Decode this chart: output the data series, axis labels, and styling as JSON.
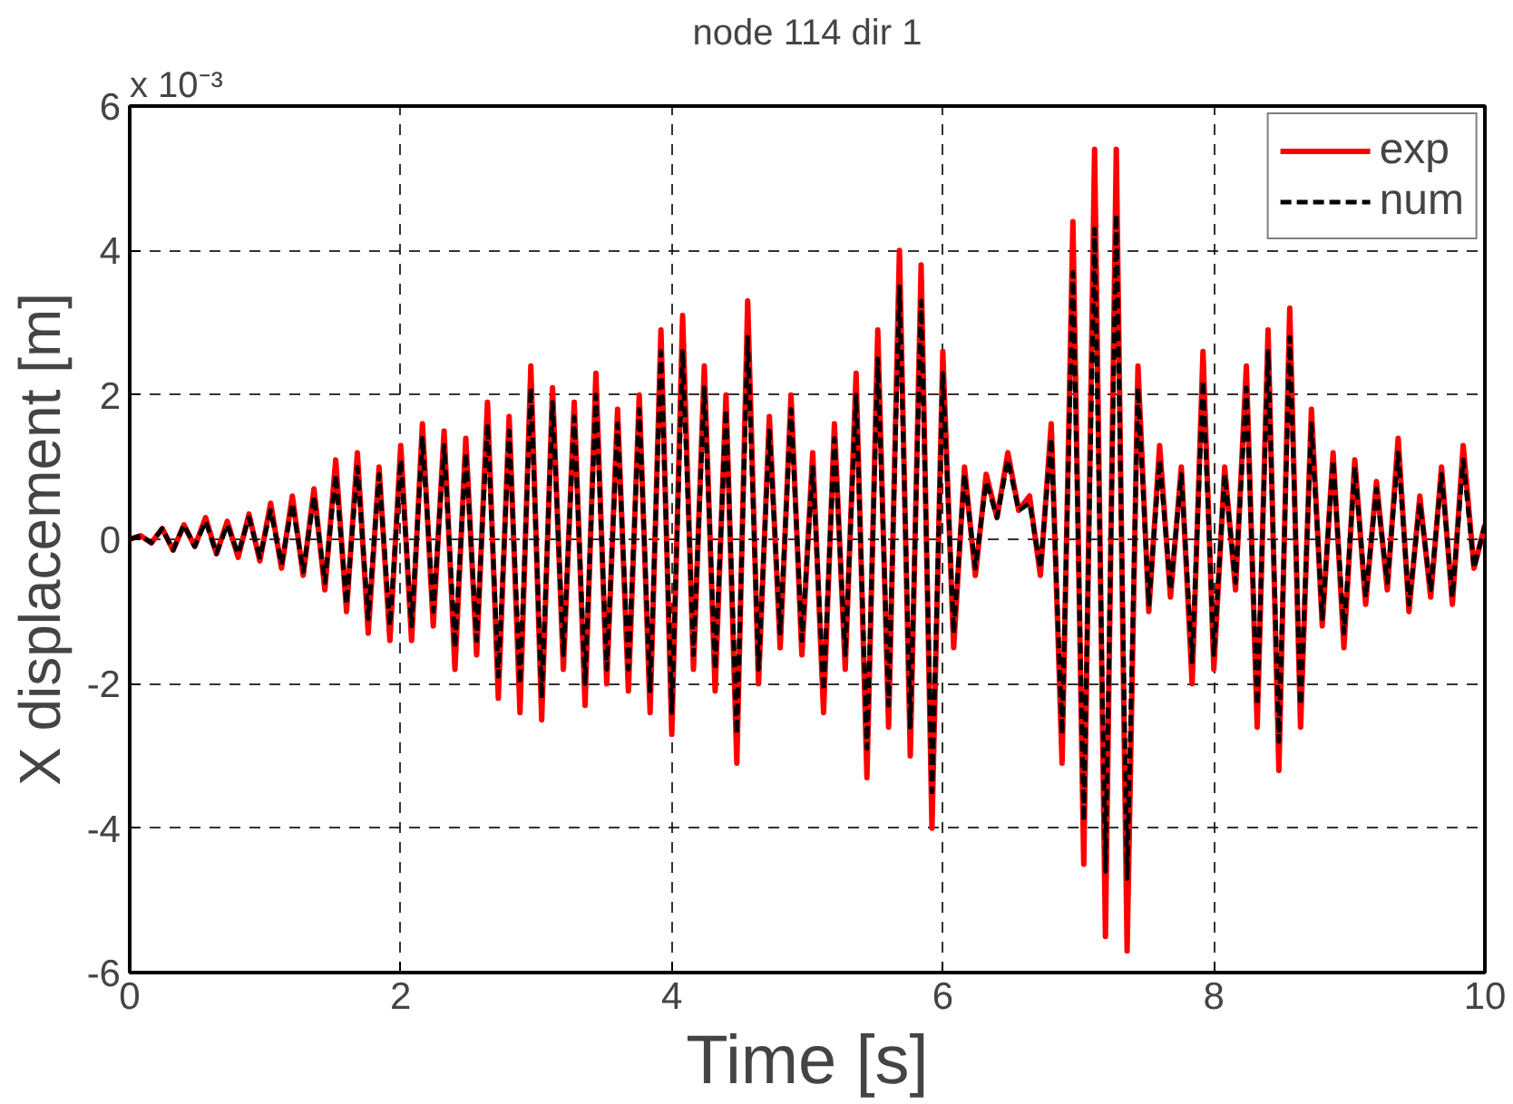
{
  "chart_data": {
    "type": "line",
    "title": "node 114 dir 1",
    "xlabel": "Time [s]",
    "ylabel": "X displacement [m]",
    "annotations": [
      "x 10⁻³"
    ],
    "xlim": [
      0,
      10
    ],
    "xticks": [
      0,
      2,
      4,
      6,
      8,
      10
    ],
    "ylim": [
      -6,
      6
    ],
    "yticks": [
      -6,
      -4,
      -2,
      0,
      2,
      4,
      6
    ],
    "grid": true,
    "legend": "top right",
    "x": [
      0,
      0.08,
      0.16,
      0.24,
      0.32,
      0.4,
      0.48,
      0.56,
      0.64,
      0.72,
      0.8,
      0.88,
      0.96,
      1.04,
      1.12,
      1.2,
      1.28,
      1.36,
      1.44,
      1.52,
      1.6,
      1.68,
      1.76,
      1.84,
      1.92,
      2.0,
      2.08,
      2.16,
      2.24,
      2.32,
      2.4,
      2.48,
      2.56,
      2.64,
      2.72,
      2.8,
      2.88,
      2.96,
      3.04,
      3.12,
      3.2,
      3.28,
      3.36,
      3.44,
      3.52,
      3.6,
      3.68,
      3.76,
      3.84,
      3.92,
      4.0,
      4.08,
      4.16,
      4.24,
      4.32,
      4.4,
      4.48,
      4.56,
      4.64,
      4.72,
      4.8,
      4.88,
      4.96,
      5.04,
      5.12,
      5.2,
      5.28,
      5.36,
      5.44,
      5.52,
      5.6,
      5.68,
      5.76,
      5.84,
      5.92,
      6.0,
      6.08,
      6.16,
      6.24,
      6.32,
      6.4,
      6.48,
      6.56,
      6.64,
      6.72,
      6.8,
      6.88,
      6.96,
      7.04,
      7.12,
      7.2,
      7.28,
      7.36,
      7.44,
      7.52,
      7.6,
      7.68,
      7.76,
      7.84,
      7.92,
      8.0,
      8.08,
      8.16,
      8.24,
      8.32,
      8.4,
      8.48,
      8.56,
      8.64,
      8.72,
      8.8,
      8.88,
      8.96,
      9.04,
      9.12,
      9.2,
      9.28,
      9.36,
      9.44,
      9.52,
      9.6,
      9.68,
      9.76,
      9.84,
      9.92,
      10.0
    ],
    "series": [
      {
        "name": "exp",
        "color": "#ff0000",
        "line_style": "solid",
        "values": [
          0,
          0.05,
          -0.05,
          0.15,
          -0.15,
          0.2,
          -0.1,
          0.3,
          -0.2,
          0.25,
          -0.25,
          0.35,
          -0.3,
          0.5,
          -0.4,
          0.6,
          -0.5,
          0.7,
          -0.7,
          1.1,
          -1.0,
          1.2,
          -1.3,
          1.0,
          -1.4,
          1.3,
          -1.4,
          1.6,
          -1.2,
          1.5,
          -1.8,
          1.4,
          -1.6,
          1.9,
          -2.2,
          1.7,
          -2.4,
          2.4,
          -2.5,
          2.1,
          -1.8,
          1.9,
          -2.3,
          2.3,
          -2.0,
          1.8,
          -2.1,
          2.0,
          -2.4,
          2.9,
          -2.7,
          3.1,
          -1.8,
          2.4,
          -2.1,
          2.0,
          -3.1,
          3.3,
          -2.0,
          1.7,
          -1.5,
          2.0,
          -1.6,
          1.2,
          -2.4,
          1.6,
          -1.8,
          2.3,
          -3.3,
          2.9,
          -2.6,
          4.0,
          -3.0,
          3.8,
          -4.0,
          2.6,
          -1.5,
          1.0,
          -0.5,
          0.9,
          0.3,
          1.2,
          0.4,
          0.6,
          -0.5,
          1.6,
          -3.1,
          4.4,
          -4.5,
          5.4,
          -5.5,
          5.4,
          -5.7,
          2.4,
          -1.0,
          1.3,
          -0.8,
          1.0,
          -2.0,
          2.6,
          -1.8,
          1.0,
          -0.7,
          2.4,
          -2.6,
          2.9,
          -3.2,
          3.2,
          -2.6,
          1.8,
          -1.2,
          1.2,
          -1.5,
          1.1,
          -0.9,
          0.8,
          -0.7,
          1.4,
          -1.0,
          0.6,
          -0.8,
          1.0,
          -0.9,
          1.3,
          -0.4,
          0.2
        ]
      },
      {
        "name": "num",
        "color": "#000000",
        "line_style": "dashed",
        "values": [
          0,
          0.05,
          -0.05,
          0.15,
          -0.15,
          0.2,
          -0.1,
          0.25,
          -0.2,
          0.2,
          -0.2,
          0.3,
          -0.25,
          0.4,
          -0.35,
          0.5,
          -0.45,
          0.6,
          -0.6,
          0.9,
          -0.9,
          1.0,
          -1.1,
          0.9,
          -1.2,
          1.1,
          -1.2,
          1.4,
          -1.0,
          1.3,
          -1.5,
          1.2,
          -1.4,
          1.6,
          -1.9,
          1.5,
          -2.0,
          2.1,
          -2.2,
          1.9,
          -1.6,
          1.7,
          -2.0,
          2.0,
          -1.8,
          1.6,
          -1.8,
          1.8,
          -2.1,
          2.6,
          -2.4,
          2.6,
          -1.6,
          2.1,
          -1.8,
          1.8,
          -2.7,
          2.8,
          -1.8,
          1.5,
          -1.3,
          1.8,
          -1.4,
          1.0,
          -2.1,
          1.4,
          -1.6,
          2.0,
          -2.9,
          2.5,
          -2.3,
          3.5,
          -2.6,
          3.3,
          -3.5,
          2.3,
          -1.3,
          0.9,
          -0.4,
          0.8,
          0.3,
          1.1,
          0.4,
          0.5,
          -0.4,
          1.4,
          -2.7,
          3.7,
          -3.9,
          4.3,
          -4.6,
          4.5,
          -4.7,
          2.1,
          -0.9,
          1.1,
          -0.7,
          0.9,
          -1.7,
          2.2,
          -1.6,
          0.9,
          -0.6,
          2.1,
          -2.3,
          2.6,
          -2.8,
          2.8,
          -2.3,
          1.6,
          -1.1,
          1.1,
          -1.3,
          1.0,
          -0.8,
          0.7,
          -0.6,
          1.2,
          -0.9,
          0.5,
          -0.7,
          0.9,
          -0.8,
          1.1,
          -0.4,
          0.2
        ]
      }
    ]
  }
}
